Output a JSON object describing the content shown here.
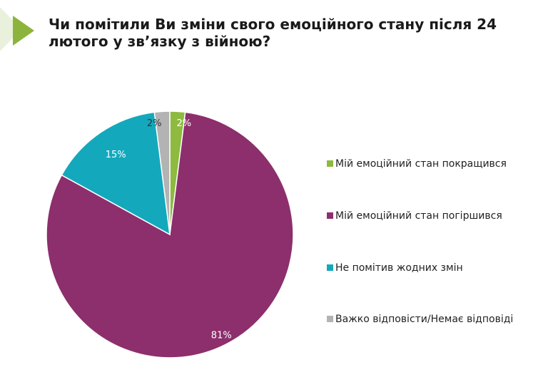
{
  "title": {
    "line1": "Чи помітили Ви зміни свого емоційного стану після 24",
    "line2": "лютого у зв’язку з війною?"
  },
  "colors": {
    "accent_triangle": "#8cb43c",
    "accent_triangle_light": "#eaf1dc"
  },
  "chart_data": {
    "type": "pie",
    "title": "",
    "legend_position": "right",
    "slices": [
      {
        "name": "Мій емоційний стан покращився",
        "value": 2,
        "label": "2%",
        "color": "#8dba3f",
        "label_color": "#ffffff"
      },
      {
        "name": "Мій емоційний стан погіршився",
        "value": 81,
        "label": "81%",
        "color": "#8c2f6c",
        "label_color": "#ffffff"
      },
      {
        "name": "Не помітив жодних змін",
        "value": 15,
        "label": "15%",
        "color": "#14a8bd",
        "label_color": "#ffffff"
      },
      {
        "name": "Важко відповісти/Немає відповіді",
        "value": 2,
        "label": "2%",
        "color": "#b3b3b3",
        "label_color": "#333333"
      }
    ]
  }
}
